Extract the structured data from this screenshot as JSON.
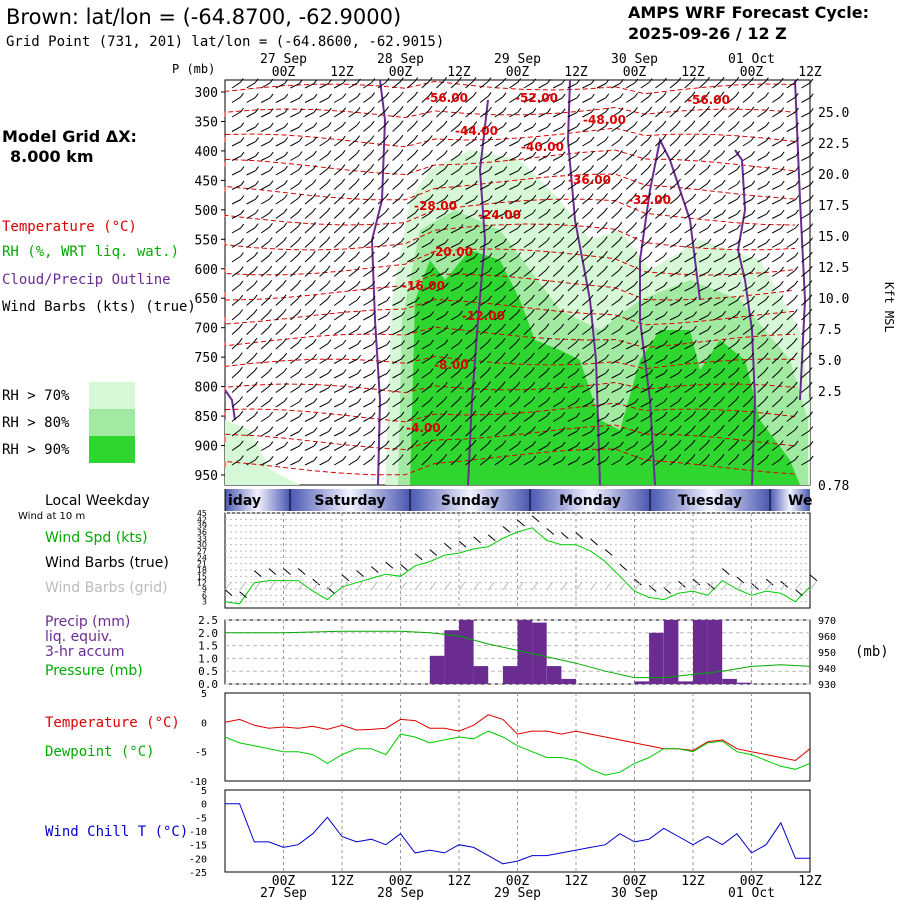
{
  "header": {
    "title": "Brown:  lat/lon = (-64.8700, -62.9000)",
    "grid_point": "Grid Point (731, 201) lat/lon = (-64.8600, -62.9015)",
    "model_title": "AMPS WRF Forecast Cycle:",
    "cycle": "2025-09-26 / 12  Z"
  },
  "left_panel": {
    "model_grid_label": "Model Grid ΔX:",
    "model_grid_value": "8.000 km",
    "legend_temperature": "Temperature (°C)",
    "legend_rh": "RH (%, WRT liq. wat.)",
    "legend_cloud": "Cloud/Precip Outline",
    "legend_wind": "Wind Barbs (kts) (true)",
    "rh_levels": [
      {
        "label": "RH > 70%",
        "color": "#d6f8d6"
      },
      {
        "label": "RH > 80%",
        "color": "#a2eaa2"
      },
      {
        "label": "RH > 90%",
        "color": "#2fd62f"
      }
    ]
  },
  "time_axis": {
    "date_labels": [
      "27 Sep",
      "28 Sep",
      "29 Sep",
      "30 Sep",
      "01 Oct"
    ],
    "hour_labels": [
      "00Z",
      "12Z",
      "00Z",
      "12Z",
      "00Z",
      "12Z",
      "00Z",
      "12Z",
      "00Z",
      "12Z"
    ]
  },
  "colors": {
    "temperature": "#dd0000",
    "rh_green": "#00cc00",
    "cloud_outline": "#6a2c91",
    "precip_bar": "#6a2c91",
    "pressure": "#00aa00",
    "wind_chill": "#0000cc",
    "weekday_band": "#4a58b0"
  },
  "chart_data": [
    {
      "type": "heatmap",
      "title": "",
      "ylabel": "P (mb)",
      "y2label": "Kft MSL",
      "pressure_ticks": [
        300,
        350,
        400,
        450,
        500,
        550,
        600,
        650,
        700,
        750,
        800,
        850,
        900,
        950
      ],
      "height_ticks": [
        "25.0",
        "22.5",
        "20.0",
        "17.5",
        "15.0",
        "12.5",
        "10.0",
        "7.5",
        "5.0",
        "2.5",
        "0.78"
      ],
      "temperature_contour_labels": [
        "-56.00",
        "-52.00",
        "-48.00",
        "-44.00",
        "-40.00",
        "-36.00",
        "-32.00",
        "-28.00",
        "-24.00",
        "-20.00",
        "-16.00",
        "-12.00",
        "-8.00",
        "-4.00",
        "-56.00"
      ],
      "rh_threshold_levels": [
        70,
        80,
        90
      ]
    },
    {
      "type": "line",
      "title": "Local Weekday",
      "weekdays": [
        "Friday",
        "Saturday",
        "Sunday",
        "Monday",
        "Tuesday",
        "Wednesday"
      ],
      "weekday_visible": [
        "iday",
        "Saturday",
        "Sunday",
        "Monday",
        "Tuesday",
        "We"
      ],
      "subtitle": "Wind at 10 m",
      "series": [
        {
          "name": "Wind Spd (kts)",
          "x_hours": [
            0,
            3,
            6,
            9,
            12,
            15,
            18,
            21,
            24,
            27,
            30,
            33,
            36,
            39,
            42,
            45,
            48,
            51,
            54,
            57,
            60,
            63,
            66,
            69,
            72,
            75,
            78,
            81,
            84,
            87,
            90,
            93,
            96,
            99,
            102,
            105,
            108,
            111,
            114,
            117,
            120
          ],
          "values": [
            3,
            2,
            12,
            13,
            13,
            13,
            8,
            4,
            10,
            12,
            14,
            16,
            15,
            20,
            22,
            25,
            26,
            28,
            29,
            33,
            36,
            38,
            32,
            30,
            30,
            27,
            22,
            15,
            8,
            5,
            4,
            7,
            8,
            6,
            13,
            9,
            6,
            8,
            7,
            3,
            10
          ]
        }
      ],
      "legend": [
        "Wind Spd (kts)",
        "Wind Barbs (true)",
        "Wind Barbs (grid)"
      ],
      "ylim": [
        0,
        45
      ],
      "yticks": [
        3,
        6,
        9,
        12,
        15,
        18,
        21,
        24,
        27,
        30,
        33,
        36,
        39,
        42,
        45
      ]
    },
    {
      "type": "bar",
      "title": "",
      "legend": [
        "Precip (mm)",
        "liq. equiv.",
        "3-hr accum",
        "Pressure (mb)"
      ],
      "ylim": [
        0,
        2.5
      ],
      "yticks": [
        "0.0",
        "0.5",
        "1.0",
        "1.5",
        "2.0",
        "2.5"
      ],
      "y2ticks": [
        "930",
        "940",
        "950",
        "960",
        "970"
      ],
      "y2label": "(mb)",
      "precip_x_hours": [
        45,
        48,
        51,
        54,
        60,
        63,
        66,
        69,
        72,
        87,
        90,
        93,
        96,
        99,
        102,
        105,
        108
      ],
      "precip_values": [
        1.1,
        2.1,
        2.5,
        0.7,
        0.7,
        2.5,
        2.4,
        0.7,
        0.2,
        0.1,
        2.0,
        2.5,
        0.1,
        2.5,
        2.5,
        0.2,
        0.05
      ],
      "pressure_x_hours": [
        0,
        12,
        24,
        36,
        42,
        48,
        54,
        60,
        66,
        72,
        78,
        84,
        90,
        96,
        102,
        108,
        114,
        120
      ],
      "pressure_values": [
        962,
        962,
        963,
        963,
        962,
        960,
        955,
        951,
        947,
        943,
        938,
        934,
        934,
        936,
        938,
        941,
        942,
        941
      ]
    },
    {
      "type": "line",
      "title": "",
      "series": [
        {
          "name": "Temperature (°C)",
          "x_hours": [
            0,
            3,
            6,
            9,
            12,
            15,
            18,
            21,
            24,
            27,
            30,
            33,
            36,
            39,
            42,
            45,
            48,
            51,
            54,
            57,
            60,
            63,
            66,
            69,
            72,
            75,
            78,
            81,
            84,
            87,
            90,
            93,
            96,
            99,
            102,
            105,
            108,
            111,
            114,
            117,
            120
          ],
          "values": [
            0,
            0.5,
            -0.5,
            -1,
            -0.8,
            -1,
            -0.7,
            -1.2,
            -0.5,
            -1.3,
            -1.2,
            -1.0,
            0.5,
            0.3,
            -1.0,
            -1.0,
            -1.5,
            -0.5,
            1.3,
            0.5,
            -2,
            -1.5,
            -1.5,
            -2,
            -1.5,
            -2,
            -2.5,
            -3,
            -3.5,
            -4,
            -4.5,
            -4.5,
            -4.8,
            -3.3,
            -3.0,
            -4.5,
            -5.0,
            -5.5,
            -6,
            -6.5,
            -4.5
          ]
        },
        {
          "name": "Dewpoint (°C)",
          "x_hours": [
            0,
            3,
            6,
            9,
            12,
            15,
            18,
            21,
            24,
            27,
            30,
            33,
            36,
            39,
            42,
            45,
            48,
            51,
            54,
            57,
            60,
            63,
            66,
            69,
            72,
            75,
            78,
            81,
            84,
            87,
            90,
            93,
            96,
            99,
            102,
            105,
            108,
            111,
            114,
            117,
            120
          ],
          "values": [
            -2.5,
            -3.5,
            -4,
            -4.5,
            -5,
            -5,
            -5.5,
            -7,
            -5.5,
            -4.5,
            -4.5,
            -5.5,
            -2.0,
            -2.5,
            -3.5,
            -3.0,
            -2.5,
            -2.8,
            -1.5,
            -2.5,
            -4,
            -5,
            -6,
            -6,
            -6.5,
            -8,
            -9,
            -8.5,
            -7,
            -6,
            -4.5,
            -4.5,
            -5,
            -3.5,
            -3.2,
            -5,
            -5.5,
            -6.5,
            -7.5,
            -8,
            -7
          ]
        }
      ],
      "ylim": [
        -10,
        5
      ],
      "yticks": [
        "5",
        "0",
        "-5",
        "-10"
      ]
    },
    {
      "type": "line",
      "title": "",
      "series": [
        {
          "name": "Wind Chill T (°C)",
          "x_hours": [
            0,
            3,
            6,
            9,
            12,
            15,
            18,
            21,
            24,
            27,
            30,
            33,
            36,
            39,
            42,
            45,
            48,
            51,
            54,
            57,
            60,
            63,
            66,
            69,
            72,
            75,
            78,
            81,
            84,
            87,
            90,
            93,
            96,
            99,
            102,
            105,
            108,
            111,
            114,
            117,
            120
          ],
          "values": [
            0,
            0,
            -14,
            -14,
            -16,
            -15,
            -11,
            -5,
            -12,
            -14,
            -13,
            -15,
            -11,
            -18,
            -17,
            -18,
            -15,
            -16,
            -19,
            -22,
            -21,
            -19,
            -19,
            -18,
            -17,
            -16,
            -15,
            -11,
            -14,
            -13,
            -9,
            -12,
            -15,
            -12,
            -15,
            -11,
            -18,
            -15,
            -7,
            -20,
            -20
          ]
        }
      ],
      "ylim": [
        -25,
        5
      ],
      "yticks": [
        "5",
        "0",
        "-5",
        "-10",
        "-15",
        "-20",
        "-25"
      ]
    }
  ]
}
